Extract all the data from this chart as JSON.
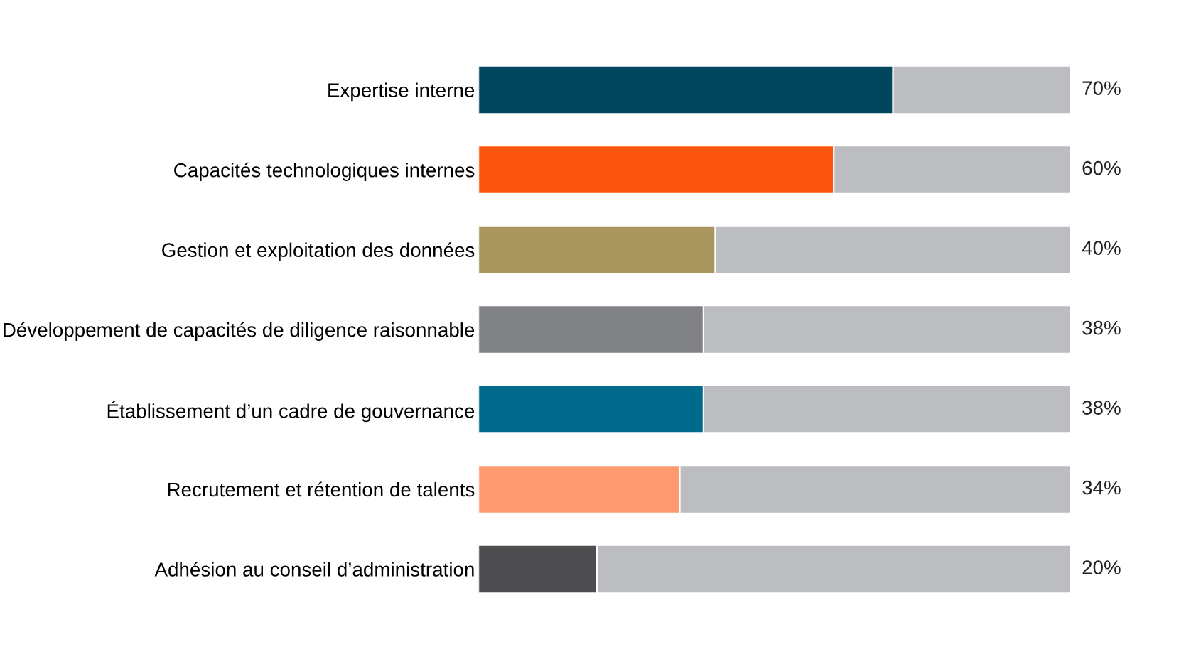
{
  "chart_data": {
    "type": "bar",
    "orientation": "horizontal",
    "stacked": true,
    "categories": [
      "Expertise interne",
      "Capacités technologiques internes",
      "Gestion et exploitation des données",
      "Développement de capacités de diligence raisonnable",
      "Établissement d’un cadre de gouvernance",
      "Recrutement et rétention de talents",
      "Adhésion au conseil d’administration"
    ],
    "series": [
      {
        "values": [
          70,
          60,
          40,
          38,
          38,
          34,
          20
        ],
        "colors": [
          "#00475e",
          "#fc5510",
          "#a8965e",
          "#808285",
          "#006a8c",
          "#ff9a70",
          "#4d4d4f"
        ],
        "value_labels": [
          "70%",
          "60%",
          "40%",
          "38%",
          "38%",
          "34%",
          "20%"
        ]
      },
      {
        "values": [
          30,
          40,
          60,
          62,
          62,
          66,
          80
        ],
        "color": "#bcbdc0"
      }
    ]
  }
}
